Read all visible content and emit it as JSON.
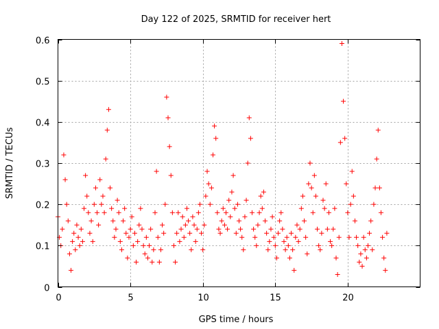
{
  "chart_data": {
    "type": "scatter",
    "title": "Day 122 of 2025, SRMTID for receiver hert",
    "xlabel": "GPS time / hours",
    "ylabel": "SRMTID / TECUs",
    "xlim": [
      0,
      25
    ],
    "ylim": [
      0,
      0.6
    ],
    "xticks": [
      0,
      5,
      10,
      15,
      20
    ],
    "yticks": [
      0,
      0.1,
      0.2,
      0.3,
      0.4,
      0.5,
      0.6
    ],
    "xtick_labels": [
      "0",
      "5",
      "10",
      "15",
      "20"
    ],
    "ytick_labels": [
      "0",
      "0.1",
      "0.2",
      "0.3",
      "0.4",
      "0.5",
      "0.6"
    ],
    "grid": true,
    "marker": "+",
    "color": "#ff0000",
    "series": [
      {
        "name": "SRMTID",
        "x": [
          0.0,
          0.1,
          0.2,
          0.3,
          0.4,
          0.5,
          0.6,
          0.7,
          0.8,
          0.9,
          1.0,
          1.1,
          1.2,
          1.3,
          1.4,
          1.5,
          1.6,
          1.7,
          1.8,
          1.9,
          2.0,
          2.1,
          2.2,
          2.3,
          2.4,
          2.5,
          2.6,
          2.7,
          2.8,
          2.9,
          3.0,
          3.1,
          3.2,
          3.3,
          3.4,
          3.5,
          3.6,
          3.7,
          3.8,
          3.9,
          4.0,
          4.1,
          4.2,
          4.3,
          4.4,
          4.5,
          4.6,
          4.7,
          4.8,
          4.9,
          5.0,
          5.1,
          5.2,
          5.3,
          5.4,
          5.5,
          5.6,
          5.7,
          5.8,
          5.9,
          6.0,
          6.1,
          6.2,
          6.3,
          6.4,
          6.5,
          6.6,
          6.7,
          6.8,
          6.9,
          7.0,
          7.1,
          7.2,
          7.3,
          7.4,
          7.5,
          7.6,
          7.7,
          7.8,
          7.9,
          8.0,
          8.1,
          8.2,
          8.3,
          8.4,
          8.5,
          8.6,
          8.7,
          8.8,
          8.9,
          9.0,
          9.1,
          9.2,
          9.3,
          9.4,
          9.5,
          9.6,
          9.7,
          9.8,
          9.9,
          10.0,
          10.1,
          10.2,
          10.3,
          10.4,
          10.5,
          10.6,
          10.7,
          10.8,
          10.9,
          11.0,
          11.1,
          11.2,
          11.3,
          11.4,
          11.5,
          11.6,
          11.7,
          11.8,
          11.9,
          12.0,
          12.1,
          12.2,
          12.3,
          12.4,
          12.5,
          12.6,
          12.7,
          12.8,
          12.9,
          13.0,
          13.1,
          13.2,
          13.3,
          13.4,
          13.5,
          13.6,
          13.7,
          13.8,
          13.9,
          14.0,
          14.1,
          14.2,
          14.3,
          14.4,
          14.5,
          14.6,
          14.7,
          14.8,
          14.9,
          15.0,
          15.1,
          15.2,
          15.3,
          15.4,
          15.5,
          15.6,
          15.7,
          15.8,
          15.9,
          16.0,
          16.1,
          16.2,
          16.3,
          16.4,
          16.5,
          16.6,
          16.7,
          16.8,
          16.9,
          17.0,
          17.1,
          17.2,
          17.3,
          17.4,
          17.5,
          17.6,
          17.7,
          17.8,
          17.9,
          18.0,
          18.1,
          18.2,
          18.3,
          18.4,
          18.5,
          18.6,
          18.7,
          18.8,
          18.9,
          19.0,
          19.1,
          19.2,
          19.3,
          19.4,
          19.5,
          19.6,
          19.7,
          19.8,
          19.9,
          20.0,
          20.1,
          20.2,
          20.3,
          20.4,
          20.5,
          20.6,
          20.7,
          20.8,
          20.9,
          21.0,
          21.1,
          21.2,
          21.3,
          21.4,
          21.5,
          21.6,
          21.7,
          21.8,
          21.9,
          22.0,
          22.1,
          22.2,
          22.3,
          22.4,
          22.5,
          22.6,
          22.7
        ],
        "y": [
          0.17,
          0.12,
          0.1,
          0.14,
          0.32,
          0.26,
          0.2,
          0.16,
          0.08,
          0.04,
          0.11,
          0.13,
          0.09,
          0.15,
          0.12,
          0.1,
          0.14,
          0.11,
          0.19,
          0.27,
          0.22,
          0.18,
          0.13,
          0.16,
          0.11,
          0.2,
          0.24,
          0.18,
          0.15,
          0.26,
          0.2,
          0.22,
          0.18,
          0.31,
          0.38,
          0.43,
          0.24,
          0.19,
          0.16,
          0.12,
          0.14,
          0.21,
          0.18,
          0.11,
          0.09,
          0.16,
          0.19,
          0.13,
          0.07,
          0.12,
          0.14,
          0.17,
          0.1,
          0.13,
          0.06,
          0.11,
          0.15,
          0.19,
          0.14,
          0.1,
          0.08,
          0.12,
          0.07,
          0.1,
          0.14,
          0.06,
          0.09,
          0.18,
          0.28,
          0.12,
          0.06,
          0.09,
          0.15,
          0.13,
          0.2,
          0.46,
          0.41,
          0.34,
          0.27,
          0.18,
          0.1,
          0.06,
          0.13,
          0.18,
          0.11,
          0.14,
          0.17,
          0.12,
          0.15,
          0.19,
          0.16,
          0.13,
          0.09,
          0.17,
          0.15,
          0.11,
          0.14,
          0.18,
          0.2,
          0.13,
          0.09,
          0.15,
          0.22,
          0.28,
          0.25,
          0.2,
          0.24,
          0.32,
          0.39,
          0.36,
          0.18,
          0.14,
          0.13,
          0.16,
          0.19,
          0.15,
          0.18,
          0.14,
          0.21,
          0.17,
          0.23,
          0.27,
          0.19,
          0.13,
          0.2,
          0.16,
          0.14,
          0.12,
          0.09,
          0.17,
          0.21,
          0.3,
          0.41,
          0.36,
          0.18,
          0.14,
          0.12,
          0.1,
          0.15,
          0.18,
          0.22,
          0.19,
          0.23,
          0.16,
          0.13,
          0.09,
          0.11,
          0.14,
          0.17,
          0.12,
          0.1,
          0.07,
          0.13,
          0.16,
          0.18,
          0.14,
          0.11,
          0.09,
          0.12,
          0.1,
          0.07,
          0.13,
          0.09,
          0.04,
          0.12,
          0.15,
          0.11,
          0.14,
          0.19,
          0.22,
          0.16,
          0.12,
          0.08,
          0.25,
          0.3,
          0.24,
          0.18,
          0.27,
          0.22,
          0.14,
          0.1,
          0.09,
          0.13,
          0.21,
          0.19,
          0.25,
          0.14,
          0.18,
          0.11,
          0.1,
          0.14,
          0.19,
          0.07,
          0.03,
          0.12,
          0.35,
          0.59,
          0.45,
          0.36,
          0.25,
          0.18,
          0.12,
          0.2,
          0.28,
          0.22,
          0.16,
          0.12,
          0.1,
          0.06,
          0.08,
          0.05,
          0.12,
          0.09,
          0.07,
          0.1,
          0.13,
          0.16,
          0.09,
          0.2,
          0.24,
          0.31,
          0.38,
          0.24,
          0.18,
          0.12,
          0.07,
          0.04,
          0.13
        ]
      }
    ]
  }
}
